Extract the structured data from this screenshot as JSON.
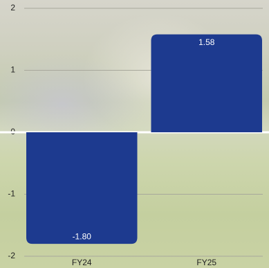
{
  "chart_data": {
    "type": "bar",
    "categories": [
      "FY24",
      "FY25"
    ],
    "values": [
      -1.8,
      1.58
    ],
    "value_labels": [
      "-1.80",
      "1.58"
    ],
    "color": "#1d3a8f",
    "ylim": [
      -2,
      2
    ],
    "yticks": [
      -2,
      -1,
      0,
      1,
      2
    ],
    "grid": true
  }
}
